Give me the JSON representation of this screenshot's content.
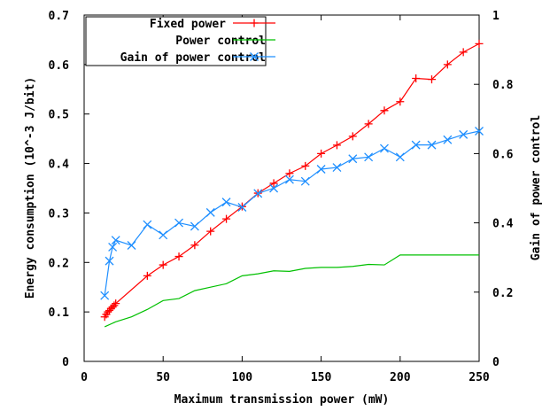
{
  "chart_data": {
    "type": "line",
    "xlabel": "Maximum transmission power (mW)",
    "ylabel": "Energy consumption (10^-3 J/bit)",
    "y2label": "Gain of power control",
    "xlim": [
      0,
      250
    ],
    "ylim": [
      0,
      0.7
    ],
    "y2lim": [
      0,
      1
    ],
    "xticks": [
      "0",
      "50",
      "100",
      "150",
      "200",
      "250"
    ],
    "yticks": [
      "0",
      "0.1",
      "0.2",
      "0.3",
      "0.4",
      "0.5",
      "0.6",
      "0.7"
    ],
    "y2ticks": [
      "0",
      "0.2",
      "0.4",
      "0.6",
      "0.8",
      "1"
    ],
    "grid": false,
    "legend_position": "top-left",
    "series": [
      {
        "name": "Fixed power",
        "axis": "left",
        "color": "#ff0000",
        "marker": "plus",
        "x": [
          13,
          14,
          15,
          16,
          17,
          18,
          19,
          20,
          40,
          50,
          60,
          70,
          80,
          90,
          100,
          110,
          120,
          130,
          140,
          150,
          160,
          170,
          180,
          190,
          200,
          210,
          220,
          230,
          240,
          250
        ],
        "y": [
          0.09,
          0.095,
          0.1,
          0.103,
          0.107,
          0.11,
          0.113,
          0.117,
          0.173,
          0.195,
          0.212,
          0.235,
          0.263,
          0.288,
          0.313,
          0.34,
          0.36,
          0.38,
          0.395,
          0.42,
          0.437,
          0.455,
          0.48,
          0.507,
          0.525,
          0.572,
          0.57,
          0.6,
          0.625,
          0.642
        ]
      },
      {
        "name": "Power control",
        "axis": "left",
        "color": "#00c000",
        "marker": "none",
        "x": [
          13,
          20,
          30,
          40,
          50,
          60,
          70,
          80,
          90,
          100,
          110,
          120,
          130,
          140,
          150,
          160,
          170,
          180,
          190,
          200,
          210,
          220,
          230,
          240,
          250
        ],
        "y": [
          0.07,
          0.08,
          0.09,
          0.105,
          0.123,
          0.127,
          0.143,
          0.15,
          0.157,
          0.173,
          0.177,
          0.183,
          0.182,
          0.188,
          0.19,
          0.19,
          0.192,
          0.196,
          0.195,
          0.215,
          0.215,
          0.215,
          0.215,
          0.215,
          0.215
        ]
      },
      {
        "name": "Gain of power control",
        "axis": "right",
        "color": "#1f8fff",
        "marker": "x",
        "x": [
          13,
          16,
          18,
          20,
          30,
          40,
          50,
          60,
          70,
          80,
          90,
          100,
          110,
          120,
          130,
          140,
          150,
          160,
          170,
          180,
          190,
          200,
          210,
          220,
          230,
          240,
          250
        ],
        "y": [
          0.19,
          0.29,
          0.33,
          0.35,
          0.335,
          0.395,
          0.365,
          0.4,
          0.39,
          0.43,
          0.46,
          0.445,
          0.485,
          0.5,
          0.525,
          0.52,
          0.555,
          0.56,
          0.585,
          0.59,
          0.615,
          0.59,
          0.625,
          0.625,
          0.64,
          0.655,
          0.665
        ]
      }
    ]
  }
}
